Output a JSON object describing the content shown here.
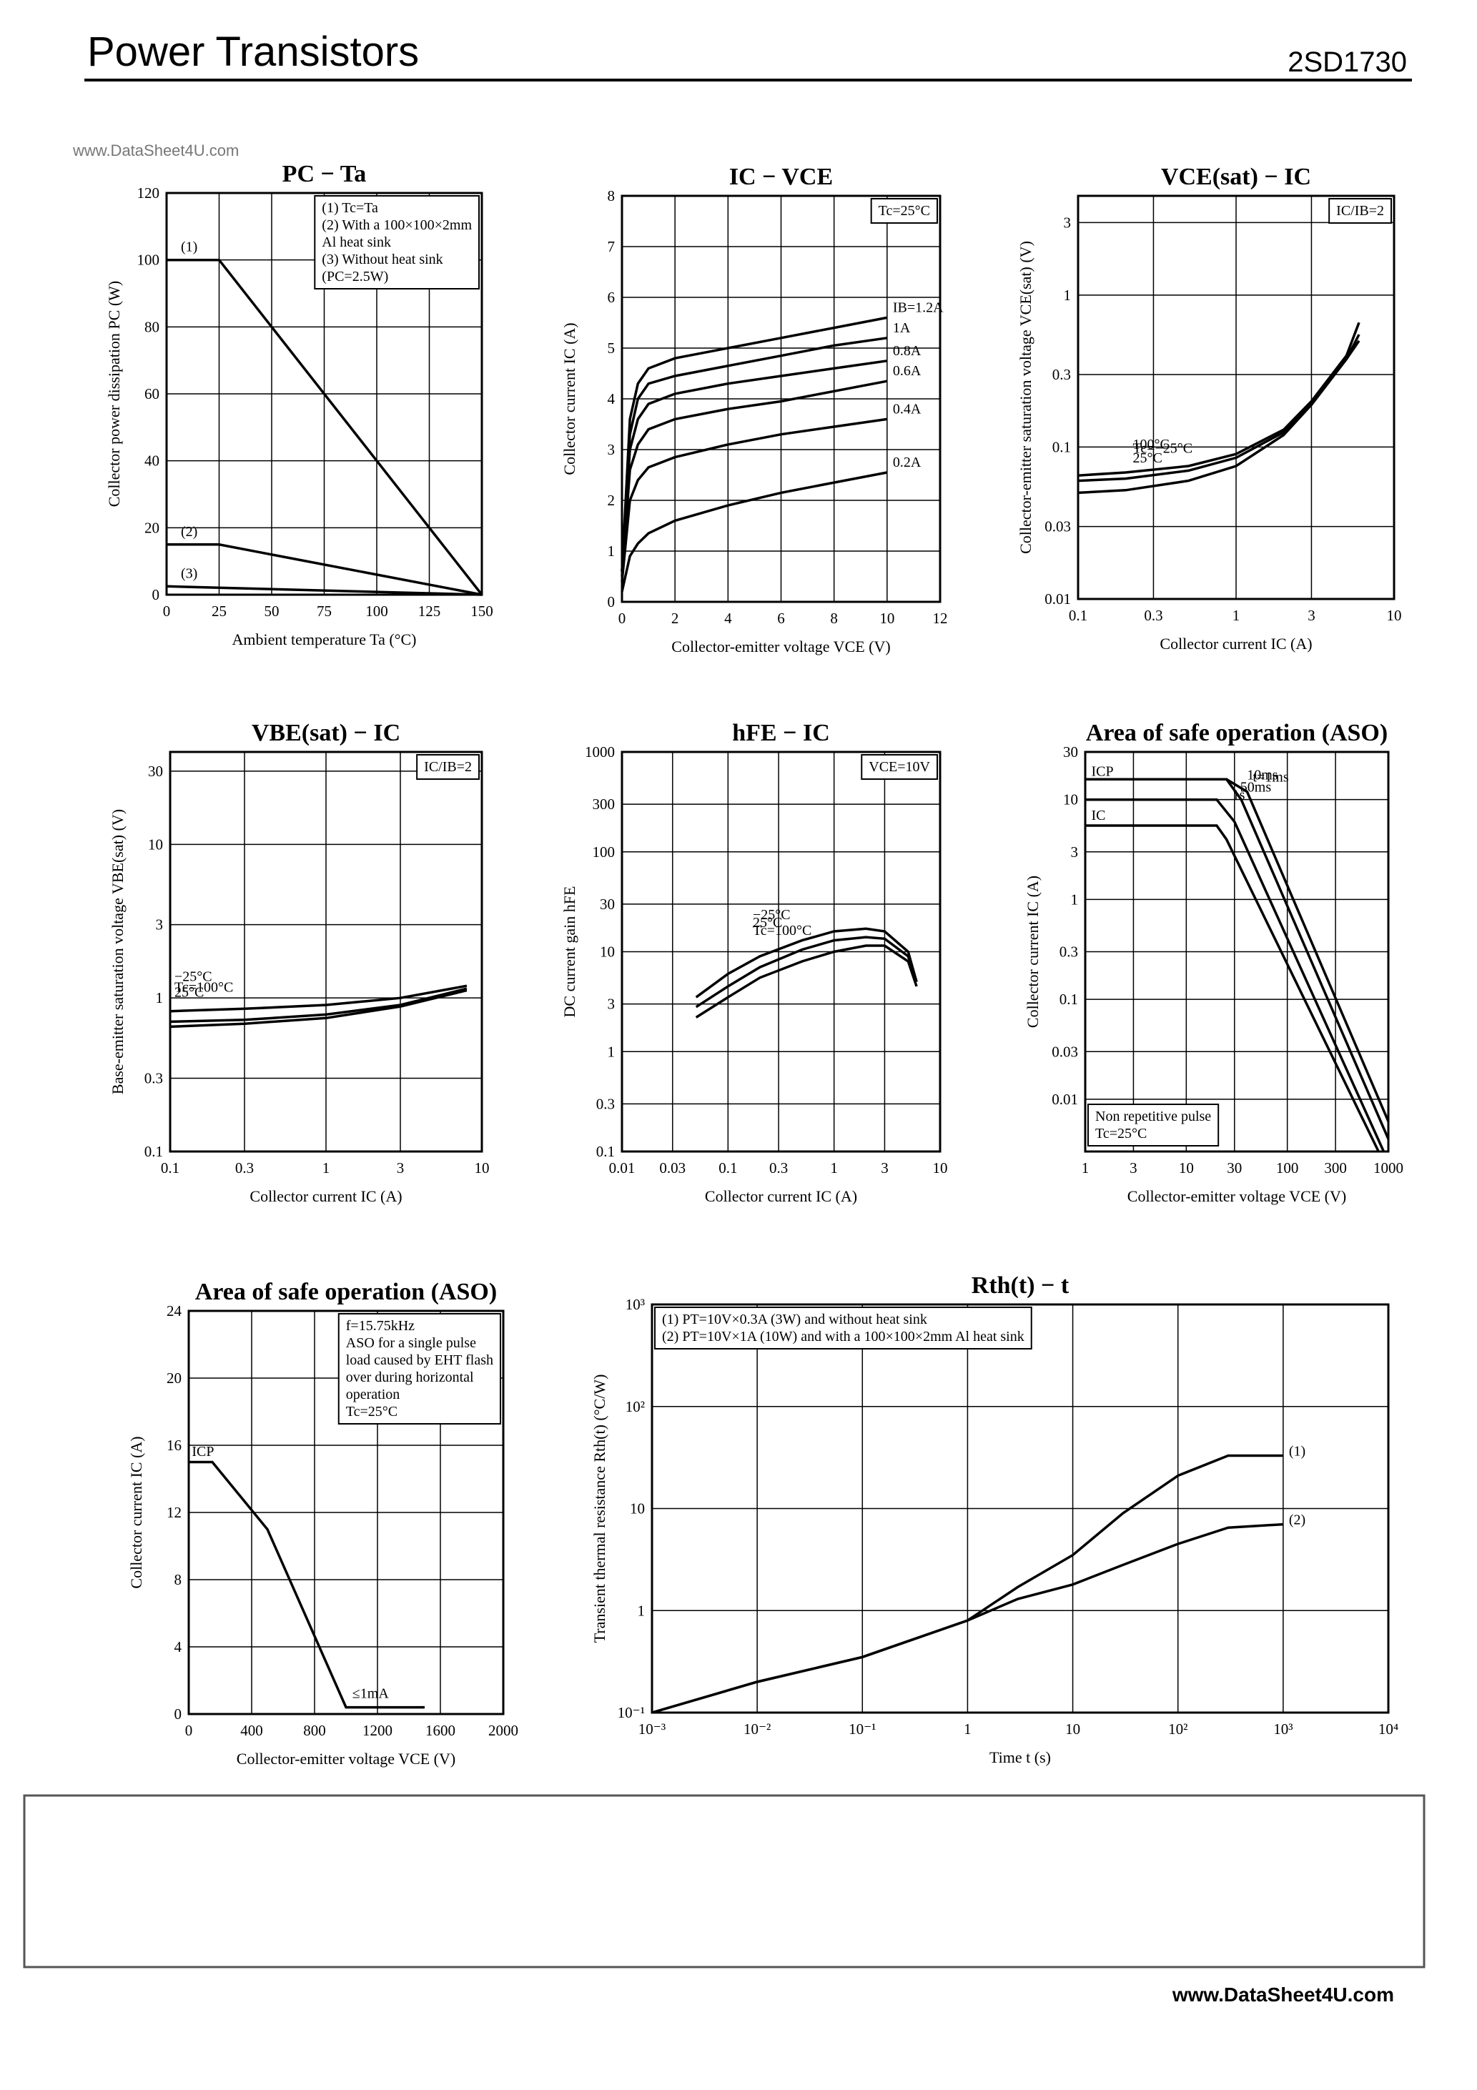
{
  "header": {
    "title": "Power Transistors",
    "part": "2SD1730",
    "watermark": "www.DataSheet4U.com"
  },
  "footer": {
    "url": "www.DataSheet4U.com"
  },
  "chart_data": [
    {
      "type": "line",
      "title": "PC − Ta",
      "xlabel": "Ambient temperature Ta (°C)",
      "ylabel": "Collector power dissipation PC (W)",
      "xscale": "linear",
      "yscale": "linear",
      "grid": true,
      "xlim": [
        0,
        150
      ],
      "ylim": [
        0,
        120
      ],
      "xticks": [
        0,
        25,
        50,
        75,
        100,
        125,
        150
      ],
      "yticks": [
        0,
        20,
        40,
        60,
        80,
        100,
        120
      ],
      "note_corner": "top-right",
      "notes": [
        "(1) Tc=Ta",
        "(2) With a 100×100×2mm",
        "Al heat sink",
        "(3) Without heat sink",
        "(PC=2.5W)"
      ],
      "labels": [],
      "series": [
        {
          "name": "(1)",
          "color": "#000",
          "x": [
            0,
            25,
            150
          ],
          "values": [
            100,
            100,
            0
          ]
        },
        {
          "name": "(2)",
          "color": "#000",
          "x": [
            0,
            25,
            150
          ],
          "values": [
            15,
            15,
            0
          ]
        },
        {
          "name": "(3)",
          "color": "#000",
          "x": [
            0,
            150
          ],
          "values": [
            2.5,
            0
          ]
        }
      ]
    },
    {
      "type": "line",
      "title": "IC − VCE",
      "xlabel": "Collector-emitter voltage VCE (V)",
      "ylabel": "Collector current IC (A)",
      "xscale": "linear",
      "yscale": "linear",
      "grid": true,
      "xlim": [
        0,
        12
      ],
      "ylim": [
        0,
        8
      ],
      "xticks": [
        0,
        2,
        4,
        6,
        8,
        10,
        12
      ],
      "yticks": [
        0,
        1,
        2,
        3,
        4,
        5,
        6,
        7,
        8
      ],
      "note_corner": "top-right",
      "notes": [
        "Tc=25°C"
      ],
      "labels": [],
      "series": [
        {
          "name": "IB=1.2A",
          "color": "#000",
          "x": [
            0,
            0.3,
            0.6,
            1,
            2,
            4,
            6,
            8,
            10
          ],
          "values": [
            0.6,
            3.6,
            4.3,
            4.6,
            4.8,
            5.0,
            5.2,
            5.4,
            5.6
          ]
        },
        {
          "name": "1A",
          "color": "#000",
          "x": [
            0,
            0.3,
            0.6,
            1,
            2,
            4,
            6,
            8,
            10
          ],
          "values": [
            0.6,
            3.3,
            4.0,
            4.3,
            4.45,
            4.65,
            4.85,
            5.05,
            5.2
          ]
        },
        {
          "name": "0.8A",
          "color": "#000",
          "x": [
            0,
            0.3,
            0.6,
            1,
            2,
            4,
            6,
            8,
            10
          ],
          "values": [
            0.6,
            3.0,
            3.6,
            3.9,
            4.1,
            4.3,
            4.45,
            4.6,
            4.75
          ]
        },
        {
          "name": "0.6A",
          "color": "#000",
          "x": [
            0,
            0.3,
            0.6,
            1,
            2,
            4,
            6,
            8,
            10
          ],
          "values": [
            0.5,
            2.6,
            3.1,
            3.4,
            3.6,
            3.8,
            3.95,
            4.15,
            4.35
          ]
        },
        {
          "name": "0.4A",
          "color": "#000",
          "x": [
            0,
            0.3,
            0.6,
            1,
            2,
            4,
            6,
            8,
            10
          ],
          "values": [
            0.4,
            2.0,
            2.4,
            2.65,
            2.85,
            3.1,
            3.3,
            3.45,
            3.6
          ]
        },
        {
          "name": "0.2A",
          "color": "#000",
          "x": [
            0,
            0.3,
            0.6,
            1,
            2,
            4,
            6,
            8,
            10
          ],
          "values": [
            0.2,
            0.9,
            1.15,
            1.35,
            1.6,
            1.9,
            2.15,
            2.35,
            2.55
          ]
        }
      ]
    },
    {
      "type": "line",
      "title": "VCE(sat) − IC",
      "xlabel": "Collector current IC (A)",
      "ylabel": "Collector-emitter saturation voltage VCE(sat) (V)",
      "xscale": "log",
      "yscale": "log",
      "grid": true,
      "xlim": [
        0.1,
        10
      ],
      "ylim": [
        0.01,
        4.5
      ],
      "xticks": [
        0.1,
        0.3,
        1,
        3,
        10
      ],
      "yticks": [
        0.01,
        0.03,
        0.1,
        0.3,
        1,
        3
      ],
      "note_corner": "top-right",
      "notes": [
        "IC/IB=2"
      ],
      "labels": [],
      "series": [
        {
          "name": "25°C",
          "color": "#000",
          "x": [
            0.1,
            0.2,
            0.5,
            1,
            2,
            3,
            5,
            6
          ],
          "values": [
            0.065,
            0.068,
            0.075,
            0.09,
            0.13,
            0.2,
            0.4,
            0.66
          ]
        },
        {
          "name": "Tc=−25°C",
          "color": "#000",
          "x": [
            0.1,
            0.2,
            0.5,
            1,
            2,
            3,
            5,
            6
          ],
          "values": [
            0.06,
            0.062,
            0.07,
            0.085,
            0.125,
            0.19,
            0.38,
            0.55
          ]
        },
        {
          "name": "100°C",
          "color": "#000",
          "x": [
            0.1,
            0.2,
            0.5,
            1,
            2,
            3,
            5,
            6
          ],
          "values": [
            0.05,
            0.052,
            0.06,
            0.075,
            0.12,
            0.19,
            0.38,
            0.5
          ]
        }
      ]
    },
    {
      "type": "line",
      "title": "VBE(sat) − IC",
      "xlabel": "Collector current IC (A)",
      "ylabel": "Base-emitter saturation voltage VBE(sat) (V)",
      "xscale": "log",
      "yscale": "log",
      "grid": true,
      "xlim": [
        0.1,
        10
      ],
      "ylim": [
        0.1,
        40
      ],
      "xticks": [
        0.1,
        0.3,
        1,
        3,
        10
      ],
      "yticks": [
        0.1,
        0.3,
        1,
        3,
        10,
        30
      ],
      "note_corner": "top-right",
      "notes": [
        "IC/IB=2"
      ],
      "labels": [],
      "series": [
        {
          "name": "25°C",
          "color": "#000",
          "x": [
            0.1,
            0.3,
            1,
            3,
            8
          ],
          "values": [
            0.82,
            0.85,
            0.9,
            1.0,
            1.2
          ]
        },
        {
          "name": "Tc=100°C",
          "color": "#000",
          "x": [
            0.1,
            0.3,
            1,
            3,
            8
          ],
          "values": [
            0.7,
            0.72,
            0.78,
            0.9,
            1.15
          ]
        },
        {
          "name": "−25°C",
          "color": "#000",
          "x": [
            0.1,
            0.3,
            1,
            3,
            8
          ],
          "values": [
            0.65,
            0.68,
            0.74,
            0.88,
            1.12
          ]
        }
      ]
    },
    {
      "type": "line",
      "title": "hFE − IC",
      "xlabel": "Collector current IC (A)",
      "ylabel": "DC current gain hFE",
      "xscale": "log",
      "yscale": "log",
      "grid": true,
      "xlim": [
        0.01,
        10
      ],
      "ylim": [
        0.1,
        1000
      ],
      "xticks": [
        0.01,
        0.03,
        0.1,
        0.3,
        1,
        3,
        10
      ],
      "yticks": [
        0.1,
        0.3,
        1,
        3,
        10,
        30,
        100,
        300,
        1000
      ],
      "note_corner": "top-right",
      "notes": [
        "VCE=10V"
      ],
      "labels": [],
      "series": [
        {
          "name": "Tc=100°C",
          "color": "#000",
          "x": [
            0.05,
            0.1,
            0.2,
            0.5,
            1,
            2,
            3,
            5,
            6
          ],
          "values": [
            3.5,
            6,
            9,
            13,
            16,
            17,
            16,
            10,
            5
          ]
        },
        {
          "name": "25°C",
          "color": "#000",
          "x": [
            0.05,
            0.1,
            0.2,
            0.5,
            1,
            2,
            3,
            5,
            6
          ],
          "values": [
            2.8,
            4.5,
            7,
            10.5,
            13,
            14,
            13.5,
            9,
            5
          ]
        },
        {
          "name": "−25°C",
          "color": "#000",
          "x": [
            0.05,
            0.1,
            0.2,
            0.5,
            1,
            2,
            3,
            5,
            6
          ],
          "values": [
            2.2,
            3.5,
            5.5,
            8,
            10,
            11.5,
            11.5,
            8,
            4.5
          ]
        }
      ]
    },
    {
      "type": "line",
      "title": "Area of safe operation (ASO)",
      "xlabel": "Collector-emitter voltage VCE (V)",
      "ylabel": "Collector current IC (A)",
      "xscale": "log",
      "yscale": "log",
      "grid": true,
      "xlim": [
        1,
        1000
      ],
      "ylim": [
        0.003,
        30
      ],
      "xticks": [
        1,
        3,
        10,
        30,
        100,
        300,
        1000
      ],
      "yticks": [
        0.01,
        0.03,
        0.1,
        0.3,
        1,
        3,
        10,
        30
      ],
      "note_corner": "bottom-left",
      "notes": [
        "Non repetitive pulse",
        "Tc=25°C"
      ],
      "labels": [
        "ICP",
        "IC"
      ],
      "series": [
        {
          "name": "t=1ms",
          "color": "#000",
          "x": [
            1,
            25,
            40,
            1000
          ],
          "values": [
            16,
            16,
            12,
            0.006
          ]
        },
        {
          "name": "10ms",
          "color": "#000",
          "x": [
            1,
            25,
            35,
            1000
          ],
          "values": [
            16,
            16,
            10,
            0.004
          ]
        },
        {
          "name": "50ms",
          "color": "#000",
          "x": [
            1,
            20,
            30,
            900
          ],
          "values": [
            10,
            10,
            6,
            0.003
          ]
        },
        {
          "name": "1s",
          "color": "#000",
          "x": [
            1,
            20,
            25,
            800
          ],
          "values": [
            5.5,
            5.5,
            4,
            0.003
          ]
        }
      ]
    },
    {
      "type": "line",
      "title": "Area of safe operation (ASO)",
      "xlabel": "Collector-emitter voltage VCE (V)",
      "ylabel": "Collector current IC (A)",
      "xscale": "linear",
      "yscale": "linear",
      "grid": true,
      "xlim": [
        0,
        2000
      ],
      "ylim": [
        0,
        24
      ],
      "xticks": [
        0,
        400,
        800,
        1200,
        1600,
        2000
      ],
      "yticks": [
        0,
        4,
        8,
        12,
        16,
        20,
        24
      ],
      "note_corner": "top-right",
      "notes": [
        "f=15.75kHz",
        "ASO for a single pulse",
        "load caused by EHT flash",
        "over during horizontal",
        "operation",
        "Tc=25°C"
      ],
      "labels": [
        "ICP",
        "≤1mA"
      ],
      "series": [
        {
          "color": "#000",
          "x": [
            0,
            150,
            500,
            1000,
            1500
          ],
          "values": [
            15,
            15,
            11,
            0.4,
            0.4
          ]
        }
      ]
    },
    {
      "type": "line",
      "title": "Rth(t) − t",
      "xlabel": "Time t (s)",
      "ylabel": "Transient thermal resistance Rth(t) (°C/W)",
      "xscale": "log",
      "yscale": "log",
      "grid": true,
      "xlim": [
        0.001,
        10000
      ],
      "ylim": [
        0.1,
        1000
      ],
      "xticks": [
        {
          "value": 0.001,
          "label": "10⁻³"
        },
        {
          "value": 0.01,
          "label": "10⁻²"
        },
        {
          "value": 0.1,
          "label": "10⁻¹"
        },
        1,
        10,
        {
          "value": 100,
          "label": "10²"
        },
        {
          "value": 1000,
          "label": "10³"
        },
        {
          "value": 10000,
          "label": "10⁴"
        }
      ],
      "yticks": [
        {
          "value": 0.1,
          "label": "10⁻¹"
        },
        1,
        10,
        {
          "value": 100,
          "label": "10²"
        },
        {
          "value": 1000,
          "label": "10³"
        }
      ],
      "note_corner": "top-left",
      "notes": [
        "(1) PT=10V×0.3A (3W) and without heat sink",
        "(2) PT=10V×1A (10W) and with a 100×100×2mm Al heat sink"
      ],
      "labels": [],
      "series": [
        {
          "name": "(1)",
          "color": "#000",
          "x": [
            0.001,
            0.01,
            0.1,
            1,
            3,
            10,
            30,
            100,
            300,
            1000
          ],
          "values": [
            0.1,
            0.2,
            0.35,
            0.8,
            1.7,
            3.5,
            9,
            21,
            33,
            33
          ]
        },
        {
          "name": "(2)",
          "color": "#000",
          "x": [
            0.001,
            0.01,
            0.1,
            1,
            3,
            10,
            30,
            100,
            300,
            1000
          ],
          "values": [
            0.1,
            0.2,
            0.35,
            0.8,
            1.3,
            1.8,
            2.8,
            4.5,
            6.5,
            7
          ]
        }
      ]
    }
  ]
}
